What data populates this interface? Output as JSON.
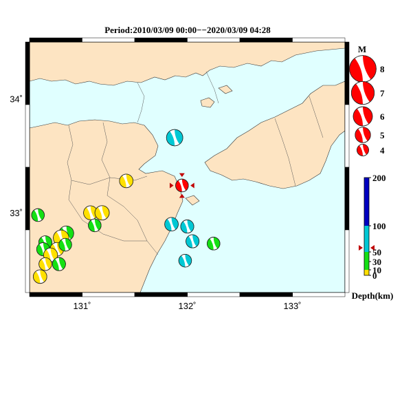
{
  "figure": {
    "title": "Period:2010/03/09 00:00−−2020/03/09 04:28",
    "lon_ticks": [
      {
        "value": 131,
        "label": "131˚"
      },
      {
        "value": 132,
        "label": "132˚"
      },
      {
        "value": 133,
        "label": "133˚"
      }
    ],
    "lat_ticks": [
      {
        "value": 34,
        "label": "34˚"
      },
      {
        "value": 33,
        "label": "33˚"
      }
    ],
    "lon_range": [
      130.5,
      133.5
    ],
    "lat_range": [
      32.3,
      34.5
    ],
    "colors": {
      "sea": "#e0ffff",
      "land": "#fde4c2",
      "coast": "#333333",
      "depth_0_10": "#ffe000",
      "depth_10_50": "#14e014",
      "depth_50_100": "#00c8d4",
      "depth_100_200": "#0000c0",
      "latest": "#ff0000"
    }
  },
  "magnitude_legend": {
    "title": "M",
    "items": [
      {
        "mag": 8,
        "label": "8"
      },
      {
        "mag": 7,
        "label": "7"
      },
      {
        "mag": 6,
        "label": "6"
      },
      {
        "mag": 5,
        "label": "5"
      },
      {
        "mag": 4,
        "label": "4"
      }
    ]
  },
  "depth_legend": {
    "title": "Depth(km)",
    "range": [
      0,
      200
    ],
    "ticks": [
      {
        "value": 0,
        "label": "0"
      },
      {
        "value": 10,
        "label": "10"
      },
      {
        "value": 30,
        "label": "30"
      },
      {
        "value": 50,
        "label": "50"
      },
      {
        "value": 100,
        "label": "100"
      },
      {
        "value": 200,
        "label": "200"
      }
    ],
    "marker_depth": 50
  },
  "events": [
    {
      "lon": 131.88,
      "lat": 33.66,
      "depth": 90,
      "mag": 5.0,
      "latest": false
    },
    {
      "lon": 131.42,
      "lat": 33.28,
      "depth": 8,
      "mag": 4.3,
      "latest": false
    },
    {
      "lon": 131.95,
      "lat": 33.24,
      "depth": 50,
      "mag": 4.1,
      "latest": true
    },
    {
      "lon": 130.58,
      "lat": 32.98,
      "depth": 20,
      "mag": 4.1,
      "latest": false
    },
    {
      "lon": 131.08,
      "lat": 33.0,
      "depth": 8,
      "mag": 4.4,
      "latest": false
    },
    {
      "lon": 131.19,
      "lat": 33.0,
      "depth": 8,
      "mag": 4.5,
      "latest": false
    },
    {
      "lon": 131.12,
      "lat": 32.89,
      "depth": 20,
      "mag": 4.1,
      "latest": false
    },
    {
      "lon": 130.85,
      "lat": 32.82,
      "depth": 20,
      "mag": 4.6,
      "latest": false
    },
    {
      "lon": 130.8,
      "lat": 32.78,
      "depth": 8,
      "mag": 4.8,
      "latest": false
    },
    {
      "lon": 130.65,
      "lat": 32.74,
      "depth": 20,
      "mag": 4.2,
      "latest": false
    },
    {
      "lon": 130.63,
      "lat": 32.68,
      "depth": 20,
      "mag": 4.2,
      "latest": false
    },
    {
      "lon": 130.76,
      "lat": 32.68,
      "depth": 8,
      "mag": 4.3,
      "latest": false
    },
    {
      "lon": 130.84,
      "lat": 32.72,
      "depth": 20,
      "mag": 4.1,
      "latest": false
    },
    {
      "lon": 130.7,
      "lat": 32.63,
      "depth": 8,
      "mag": 4.4,
      "latest": false
    },
    {
      "lon": 130.78,
      "lat": 32.55,
      "depth": 20,
      "mag": 4.2,
      "latest": false
    },
    {
      "lon": 130.65,
      "lat": 32.55,
      "depth": 8,
      "mag": 4.1,
      "latest": false
    },
    {
      "lon": 130.6,
      "lat": 32.44,
      "depth": 8,
      "mag": 4.3,
      "latest": false
    },
    {
      "lon": 131.85,
      "lat": 32.9,
      "depth": 60,
      "mag": 4.3,
      "latest": false
    },
    {
      "lon": 132.0,
      "lat": 32.88,
      "depth": 60,
      "mag": 4.2,
      "latest": false
    },
    {
      "lon": 132.05,
      "lat": 32.75,
      "depth": 60,
      "mag": 4.2,
      "latest": false
    },
    {
      "lon": 132.25,
      "lat": 32.73,
      "depth": 25,
      "mag": 4.1,
      "latest": false
    },
    {
      "lon": 131.98,
      "lat": 32.58,
      "depth": 60,
      "mag": 4.1,
      "latest": false
    }
  ]
}
